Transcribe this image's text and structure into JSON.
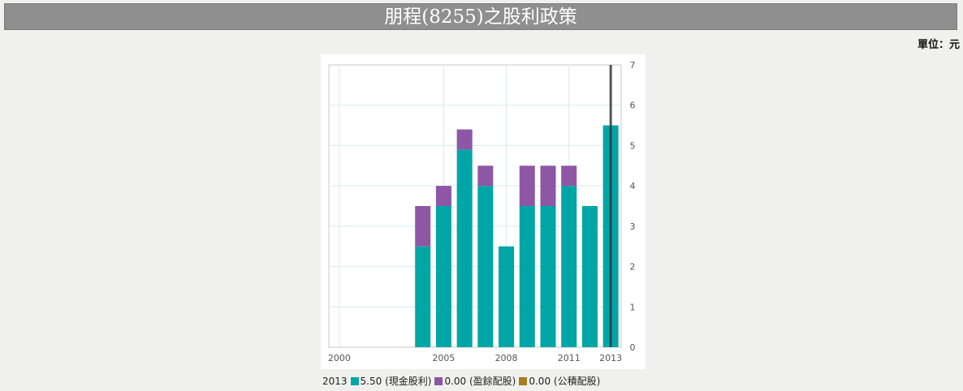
{
  "page": {
    "title": "朋程(8255)之股利政策",
    "unit_label": "單位：元"
  },
  "colors": {
    "cash": "#00a6a6",
    "earnings": "#8e57a6",
    "reserve": "#a77d1f",
    "grid": "#d6ecec",
    "cursor": "#333944"
  },
  "legend": {
    "year": "2013",
    "items": [
      {
        "name": "現金股利",
        "value": "5.50",
        "text": "5.50 (現金股利)",
        "color": "#00a6a6"
      },
      {
        "name": "盈餘配股",
        "value": "0.00",
        "text": "0.00 (盈餘配股)",
        "color": "#8e57a6"
      },
      {
        "name": "公積配股",
        "value": "0.00",
        "text": "0.00 (公積配股)",
        "color": "#a77d1f"
      }
    ]
  },
  "chart_data": {
    "type": "bar",
    "stacked": true,
    "title": "朋程(8255)之股利政策",
    "xlabel": "",
    "ylabel": "",
    "unit": "元",
    "categories": [
      "2000",
      "2001",
      "2002",
      "2003",
      "2004",
      "2005",
      "2006",
      "2007",
      "2008",
      "2009",
      "2010",
      "2011",
      "2012",
      "2013"
    ],
    "x_tick_labels": [
      "2000",
      "2005",
      "2008",
      "2011",
      "2013"
    ],
    "series": [
      {
        "name": "現金股利",
        "values": [
          0,
          0,
          0,
          0,
          2.5,
          3.5,
          4.9,
          4.0,
          2.5,
          3.5,
          3.5,
          4.0,
          3.5,
          5.5
        ]
      },
      {
        "name": "盈餘配股",
        "values": [
          0,
          0,
          0,
          0,
          1.0,
          0.5,
          0.5,
          0.5,
          0,
          1.0,
          1.0,
          0.5,
          0,
          0
        ]
      },
      {
        "name": "公積配股",
        "values": [
          0,
          0,
          0,
          0,
          0,
          0,
          0,
          0,
          0,
          0,
          0,
          0,
          0,
          0
        ]
      }
    ],
    "ylim": [
      0,
      7
    ],
    "y_ticks": [
      "0",
      "1",
      "2",
      "3",
      "4",
      "5",
      "6",
      "7"
    ],
    "y_axis_position": "right",
    "grid": true,
    "highlighted_category": "2013"
  }
}
